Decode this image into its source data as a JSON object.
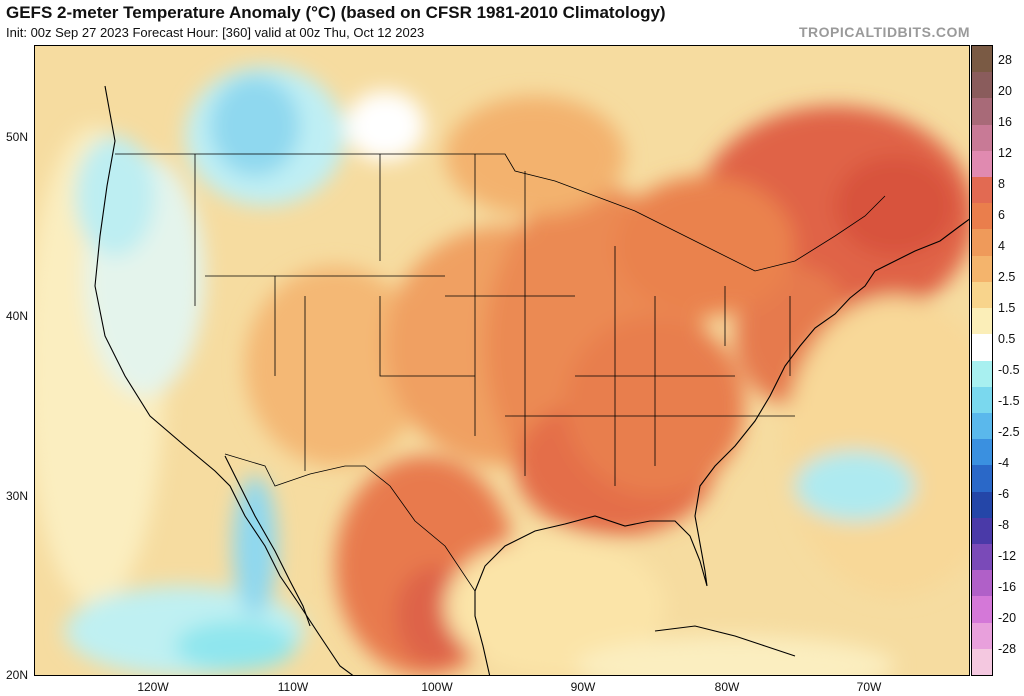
{
  "title": "GEFS 2-meter Temperature Anomaly (°C) (based on CFSR 1981-2010 Climatology)",
  "subtitle": "Init: 00z Sep 27 2023   Forecast Hour: [360]   valid at 00z Thu, Oct 12 2023",
  "watermark": "TROPICALTIDBITS.COM",
  "latitude_labels": [
    "50N",
    "40N",
    "30N",
    "20N"
  ],
  "longitude_labels": [
    "120W",
    "110W",
    "100W",
    "90W",
    "80W",
    "70W"
  ],
  "colorbar": {
    "labels": [
      "28",
      "20",
      "16",
      "12",
      "8",
      "6",
      "4",
      "2.5",
      "1.5",
      "0.5",
      "-0.5",
      "-1.5",
      "-2.5",
      "-4",
      "-6",
      "-8",
      "-12",
      "-16",
      "-20",
      "-28"
    ],
    "colors": [
      "#7a5a44",
      "#8a5c5c",
      "#a86a78",
      "#c87a96",
      "#e08ab0",
      "#e26a52",
      "#ea7e4c",
      "#ef9a5a",
      "#f4b46c",
      "#f8d48c",
      "#fbeeb8",
      "#ffffff",
      "#a8f0f0",
      "#7ad8ee",
      "#5ab8ec",
      "#3a90e0",
      "#2a68c8",
      "#2446a8",
      "#4a3aa8",
      "#7a4ab8",
      "#b060c8",
      "#d478d8",
      "#e8a0dc",
      "#f4c8e0"
    ]
  }
}
